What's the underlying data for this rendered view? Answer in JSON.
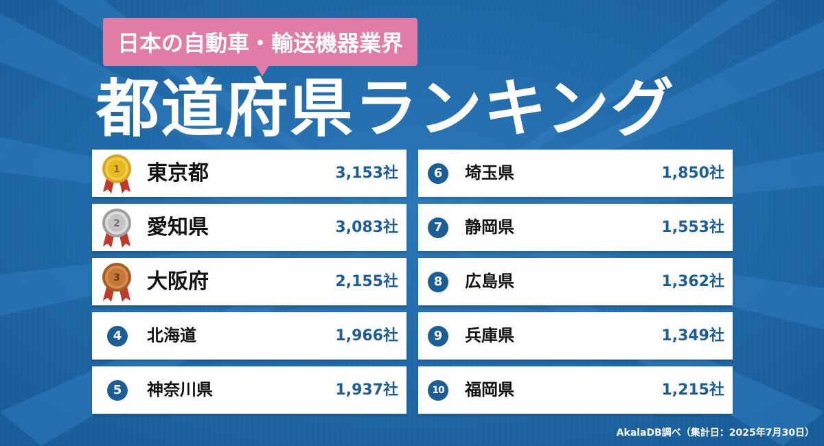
{
  "header": {
    "badge": "日本の自動車・輸送機器業界",
    "title": "都道府県ランキング"
  },
  "ranking": [
    {
      "rank": "1",
      "prefecture": "東京都",
      "count": "3,153社",
      "medal": "gold"
    },
    {
      "rank": "2",
      "prefecture": "愛知県",
      "count": "3,083社",
      "medal": "silver"
    },
    {
      "rank": "3",
      "prefecture": "大阪府",
      "count": "2,155社",
      "medal": "bronze"
    },
    {
      "rank": "4",
      "prefecture": "北海道",
      "count": "1,966社"
    },
    {
      "rank": "5",
      "prefecture": "神奈川県",
      "count": "1,937社"
    },
    {
      "rank": "6",
      "prefecture": "埼玉県",
      "count": "1,850社"
    },
    {
      "rank": "7",
      "prefecture": "静岡県",
      "count": "1,553社"
    },
    {
      "rank": "8",
      "prefecture": "広島県",
      "count": "1,362社"
    },
    {
      "rank": "9",
      "prefecture": "兵庫県",
      "count": "1,349社"
    },
    {
      "rank": "10",
      "prefecture": "福岡県",
      "count": "1,215社"
    }
  ],
  "footer": {
    "source": "AkalaDB調べ（集計日：2025年7月30日）"
  },
  "colors": {
    "background": "#1d67a7",
    "badge": "#e07ca6",
    "accent": "#1b5d97",
    "gold": "#e8b923",
    "silver": "#b9b9b9",
    "bronze": "#c4773a"
  }
}
